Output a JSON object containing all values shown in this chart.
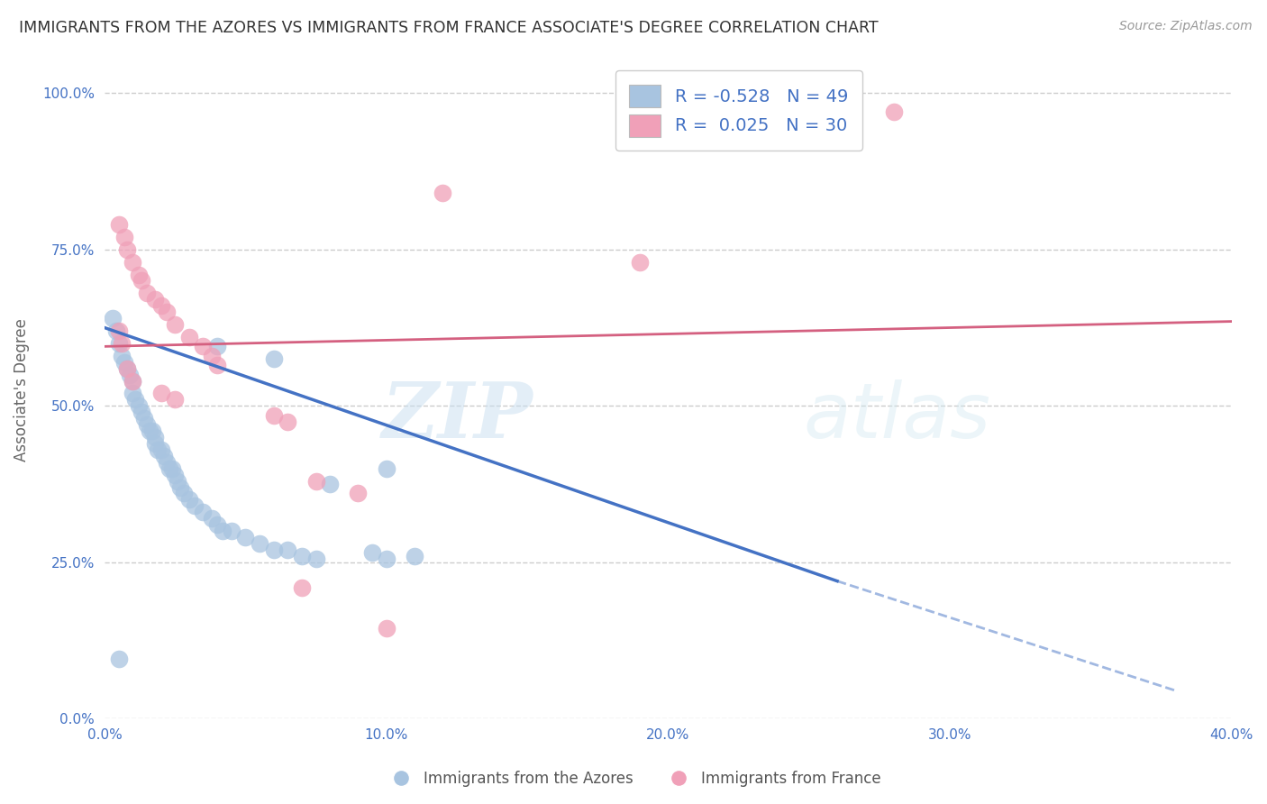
{
  "title": "IMMIGRANTS FROM THE AZORES VS IMMIGRANTS FROM FRANCE ASSOCIATE'S DEGREE CORRELATION CHART",
  "source": "Source: ZipAtlas.com",
  "ylabel": "Associate's Degree",
  "xmin": 0.0,
  "xmax": 0.4,
  "ymin": 0.0,
  "ymax": 1.05,
  "yticks": [
    0.0,
    0.25,
    0.5,
    0.75,
    1.0
  ],
  "ytick_labels": [
    "0.0%",
    "25.0%",
    "50.0%",
    "75.0%",
    "100.0%"
  ],
  "xticks": [
    0.0,
    0.1,
    0.2,
    0.3,
    0.4
  ],
  "xtick_labels": [
    "0.0%",
    "10.0%",
    "20.0%",
    "30.0%",
    "40.0%"
  ],
  "background_color": "#ffffff",
  "grid_color": "#cccccc",
  "watermark_zip": "ZIP",
  "watermark_atlas": "atlas",
  "legend_R1": "-0.528",
  "legend_N1": "49",
  "legend_R2": "0.025",
  "legend_N2": "30",
  "blue_color": "#a8c4e0",
  "pink_color": "#f0a0b8",
  "blue_line_color": "#4472c4",
  "pink_line_color": "#d46080",
  "blue_scatter": [
    [
      0.003,
      0.64
    ],
    [
      0.004,
      0.62
    ],
    [
      0.005,
      0.6
    ],
    [
      0.006,
      0.58
    ],
    [
      0.007,
      0.57
    ],
    [
      0.008,
      0.56
    ],
    [
      0.009,
      0.55
    ],
    [
      0.01,
      0.54
    ],
    [
      0.01,
      0.52
    ],
    [
      0.011,
      0.51
    ],
    [
      0.012,
      0.5
    ],
    [
      0.013,
      0.49
    ],
    [
      0.014,
      0.48
    ],
    [
      0.015,
      0.47
    ],
    [
      0.016,
      0.46
    ],
    [
      0.017,
      0.46
    ],
    [
      0.018,
      0.45
    ],
    [
      0.018,
      0.44
    ],
    [
      0.019,
      0.43
    ],
    [
      0.02,
      0.43
    ],
    [
      0.021,
      0.42
    ],
    [
      0.022,
      0.41
    ],
    [
      0.023,
      0.4
    ],
    [
      0.024,
      0.4
    ],
    [
      0.025,
      0.39
    ],
    [
      0.026,
      0.38
    ],
    [
      0.027,
      0.37
    ],
    [
      0.028,
      0.36
    ],
    [
      0.03,
      0.35
    ],
    [
      0.032,
      0.34
    ],
    [
      0.035,
      0.33
    ],
    [
      0.038,
      0.32
    ],
    [
      0.04,
      0.31
    ],
    [
      0.042,
      0.3
    ],
    [
      0.045,
      0.3
    ],
    [
      0.05,
      0.29
    ],
    [
      0.055,
      0.28
    ],
    [
      0.06,
      0.27
    ],
    [
      0.065,
      0.27
    ],
    [
      0.07,
      0.26
    ],
    [
      0.075,
      0.255
    ],
    [
      0.005,
      0.095
    ],
    [
      0.08,
      0.375
    ],
    [
      0.1,
      0.4
    ],
    [
      0.06,
      0.575
    ],
    [
      0.095,
      0.265
    ],
    [
      0.1,
      0.255
    ],
    [
      0.11,
      0.26
    ],
    [
      0.04,
      0.595
    ]
  ],
  "pink_scatter": [
    [
      0.005,
      0.79
    ],
    [
      0.007,
      0.77
    ],
    [
      0.008,
      0.75
    ],
    [
      0.01,
      0.73
    ],
    [
      0.012,
      0.71
    ],
    [
      0.013,
      0.7
    ],
    [
      0.015,
      0.68
    ],
    [
      0.018,
      0.67
    ],
    [
      0.02,
      0.66
    ],
    [
      0.022,
      0.65
    ],
    [
      0.025,
      0.63
    ],
    [
      0.03,
      0.61
    ],
    [
      0.035,
      0.595
    ],
    [
      0.038,
      0.58
    ],
    [
      0.04,
      0.565
    ],
    [
      0.005,
      0.62
    ],
    [
      0.006,
      0.6
    ],
    [
      0.008,
      0.56
    ],
    [
      0.01,
      0.54
    ],
    [
      0.02,
      0.52
    ],
    [
      0.025,
      0.51
    ],
    [
      0.06,
      0.485
    ],
    [
      0.065,
      0.475
    ],
    [
      0.075,
      0.38
    ],
    [
      0.09,
      0.36
    ],
    [
      0.1,
      0.145
    ],
    [
      0.07,
      0.21
    ],
    [
      0.28,
      0.97
    ],
    [
      0.12,
      0.84
    ],
    [
      0.19,
      0.73
    ]
  ],
  "blue_trendline_solid": [
    [
      0.0,
      0.625
    ],
    [
      0.26,
      0.22
    ]
  ],
  "blue_trendline_dashed": [
    [
      0.26,
      0.22
    ],
    [
      0.38,
      0.045
    ]
  ],
  "pink_trendline": [
    [
      0.0,
      0.595
    ],
    [
      0.4,
      0.635
    ]
  ]
}
